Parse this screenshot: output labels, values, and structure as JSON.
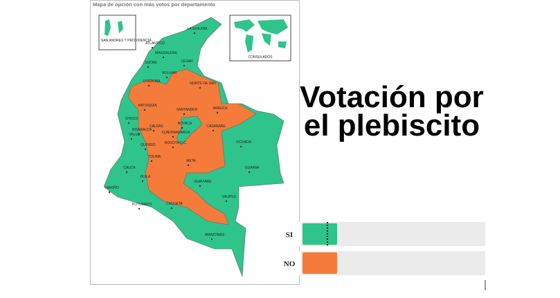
{
  "map": {
    "title": "Mapa de opción con más votos por departamento",
    "inset_islands": "SAN ANDRES Y PROVIDENCIA",
    "inset_world": "CONSULADOS",
    "departments": [
      "LA GUAJIRA",
      "ATLANTICO",
      "MAGDALENA",
      "SUCRE",
      "CESAR",
      "BOLIVAR",
      "CORDOBA",
      "NORTE DE SAN",
      "ANTIOQUIA",
      "SANTANDER",
      "ARAUCA",
      "CHOCO",
      "CALDAS",
      "BOYACA",
      "CASANARE",
      "RISARALDA",
      "CUNDINAMARCA",
      "VALLE",
      "QUINDIO",
      "BOGOTA D.C.",
      "VICHADA",
      "TOLIMA",
      "META",
      "CAUCA",
      "GUAINIA",
      "HUILA",
      "GUAVIARE",
      "NARIÑO",
      "VAUPES",
      "PUTUMAYO",
      "CAQUETA",
      "AMAZONAS"
    ]
  },
  "heading": "Votación por el plebiscito",
  "options": [
    {
      "label": "SI",
      "color": "#2ec48b"
    },
    {
      "label": "NO",
      "color": "#f47b3a"
    }
  ]
}
